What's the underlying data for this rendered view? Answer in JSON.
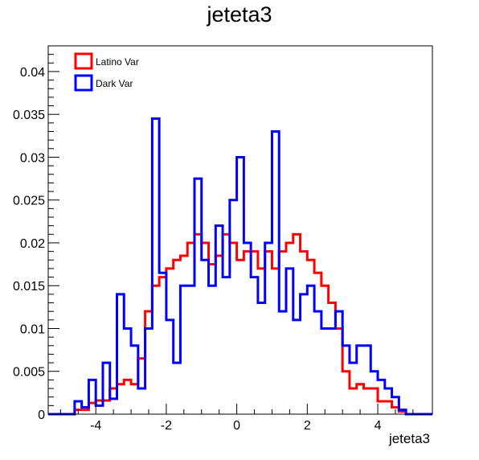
{
  "chart_data": {
    "type": "histogram-step",
    "title": "jeteta3",
    "xlabel": "jeteta3",
    "ylabel": "",
    "xlim": [
      -5.35,
      5.55
    ],
    "ylim": [
      0,
      0.043
    ],
    "bin_width": 0.2,
    "x_ticks": [
      -4,
      -2,
      0,
      2,
      4
    ],
    "x_tick_labels": [
      "-4",
      "-2",
      "0",
      "2",
      "4"
    ],
    "y_ticks": [
      0,
      0.005,
      0.01,
      0.015,
      0.02,
      0.025,
      0.03,
      0.035,
      0.04
    ],
    "y_tick_labels": [
      "0",
      "0.005",
      "0.01",
      "0.015",
      "0.02",
      "0.025",
      "0.03",
      "0.035",
      "0.04"
    ],
    "grid": false,
    "legend_position": "top-left",
    "series": [
      {
        "name": "Latino Var",
        "color": "#ff0000",
        "bins": [
          [
            -4.6,
            0.0005
          ],
          [
            -4.4,
            0.0005
          ],
          [
            -4.2,
            0.0013
          ],
          [
            -4.0,
            0.0016
          ],
          [
            -3.8,
            0.0016
          ],
          [
            -3.6,
            0.003
          ],
          [
            -3.4,
            0.0035
          ],
          [
            -3.2,
            0.004
          ],
          [
            -3.0,
            0.0035
          ],
          [
            -2.8,
            0.0065
          ],
          [
            -2.6,
            0.012
          ],
          [
            -2.4,
            0.015
          ],
          [
            -2.2,
            0.016
          ],
          [
            -2.0,
            0.017
          ],
          [
            -1.8,
            0.018
          ],
          [
            -1.6,
            0.0185
          ],
          [
            -1.4,
            0.02
          ],
          [
            -1.2,
            0.021
          ],
          [
            -1.0,
            0.02
          ],
          [
            -0.8,
            0.0175
          ],
          [
            -0.6,
            0.0185
          ],
          [
            -0.4,
            0.021
          ],
          [
            -0.2,
            0.02
          ],
          [
            0.0,
            0.018
          ],
          [
            0.2,
            0.019
          ],
          [
            0.4,
            0.019
          ],
          [
            0.6,
            0.017
          ],
          [
            0.8,
            0.019
          ],
          [
            1.0,
            0.017
          ],
          [
            1.2,
            0.019
          ],
          [
            1.4,
            0.02
          ],
          [
            1.6,
            0.021
          ],
          [
            1.8,
            0.019
          ],
          [
            2.0,
            0.018
          ],
          [
            2.2,
            0.0165
          ],
          [
            2.4,
            0.015
          ],
          [
            2.6,
            0.013
          ],
          [
            2.8,
            0.01
          ],
          [
            3.0,
            0.005
          ],
          [
            3.2,
            0.003
          ],
          [
            3.4,
            0.0035
          ],
          [
            3.6,
            0.003
          ],
          [
            3.8,
            0.003
          ],
          [
            4.0,
            0.0015
          ],
          [
            4.2,
            0.0015
          ],
          [
            4.4,
            0.0008
          ],
          [
            4.6,
            0.0003
          ]
        ]
      },
      {
        "name": "Dark Var",
        "color": "#0000ff",
        "bins": [
          [
            -4.6,
            0.0015
          ],
          [
            -4.4,
            0.0008
          ],
          [
            -4.2,
            0.004
          ],
          [
            -4.0,
            0.001
          ],
          [
            -3.8,
            0.006
          ],
          [
            -3.6,
            0.0018
          ],
          [
            -3.4,
            0.014
          ],
          [
            -3.2,
            0.01
          ],
          [
            -3.0,
            0.008
          ],
          [
            -2.8,
            0.003
          ],
          [
            -2.6,
            0.01
          ],
          [
            -2.4,
            0.0345
          ],
          [
            -2.2,
            0.0165
          ],
          [
            -2.0,
            0.011
          ],
          [
            -1.8,
            0.006
          ],
          [
            -1.6,
            0.015
          ],
          [
            -1.4,
            0.015
          ],
          [
            -1.2,
            0.0275
          ],
          [
            -1.0,
            0.018
          ],
          [
            -0.8,
            0.015
          ],
          [
            -0.6,
            0.022
          ],
          [
            -0.4,
            0.016
          ],
          [
            -0.2,
            0.025
          ],
          [
            0.0,
            0.03
          ],
          [
            0.2,
            0.02
          ],
          [
            0.4,
            0.016
          ],
          [
            0.6,
            0.013
          ],
          [
            0.8,
            0.02
          ],
          [
            1.0,
            0.033
          ],
          [
            1.2,
            0.012
          ],
          [
            1.4,
            0.017
          ],
          [
            1.6,
            0.011
          ],
          [
            1.8,
            0.014
          ],
          [
            2.0,
            0.015
          ],
          [
            2.2,
            0.012
          ],
          [
            2.4,
            0.01
          ],
          [
            2.6,
            0.01
          ],
          [
            2.8,
            0.012
          ],
          [
            3.0,
            0.008
          ],
          [
            3.2,
            0.006
          ],
          [
            3.4,
            0.008
          ],
          [
            3.6,
            0.008
          ],
          [
            3.8,
            0.005
          ],
          [
            4.0,
            0.004
          ],
          [
            4.2,
            0.003
          ],
          [
            4.4,
            0.002
          ],
          [
            4.6,
            0.0005
          ]
        ]
      }
    ]
  }
}
